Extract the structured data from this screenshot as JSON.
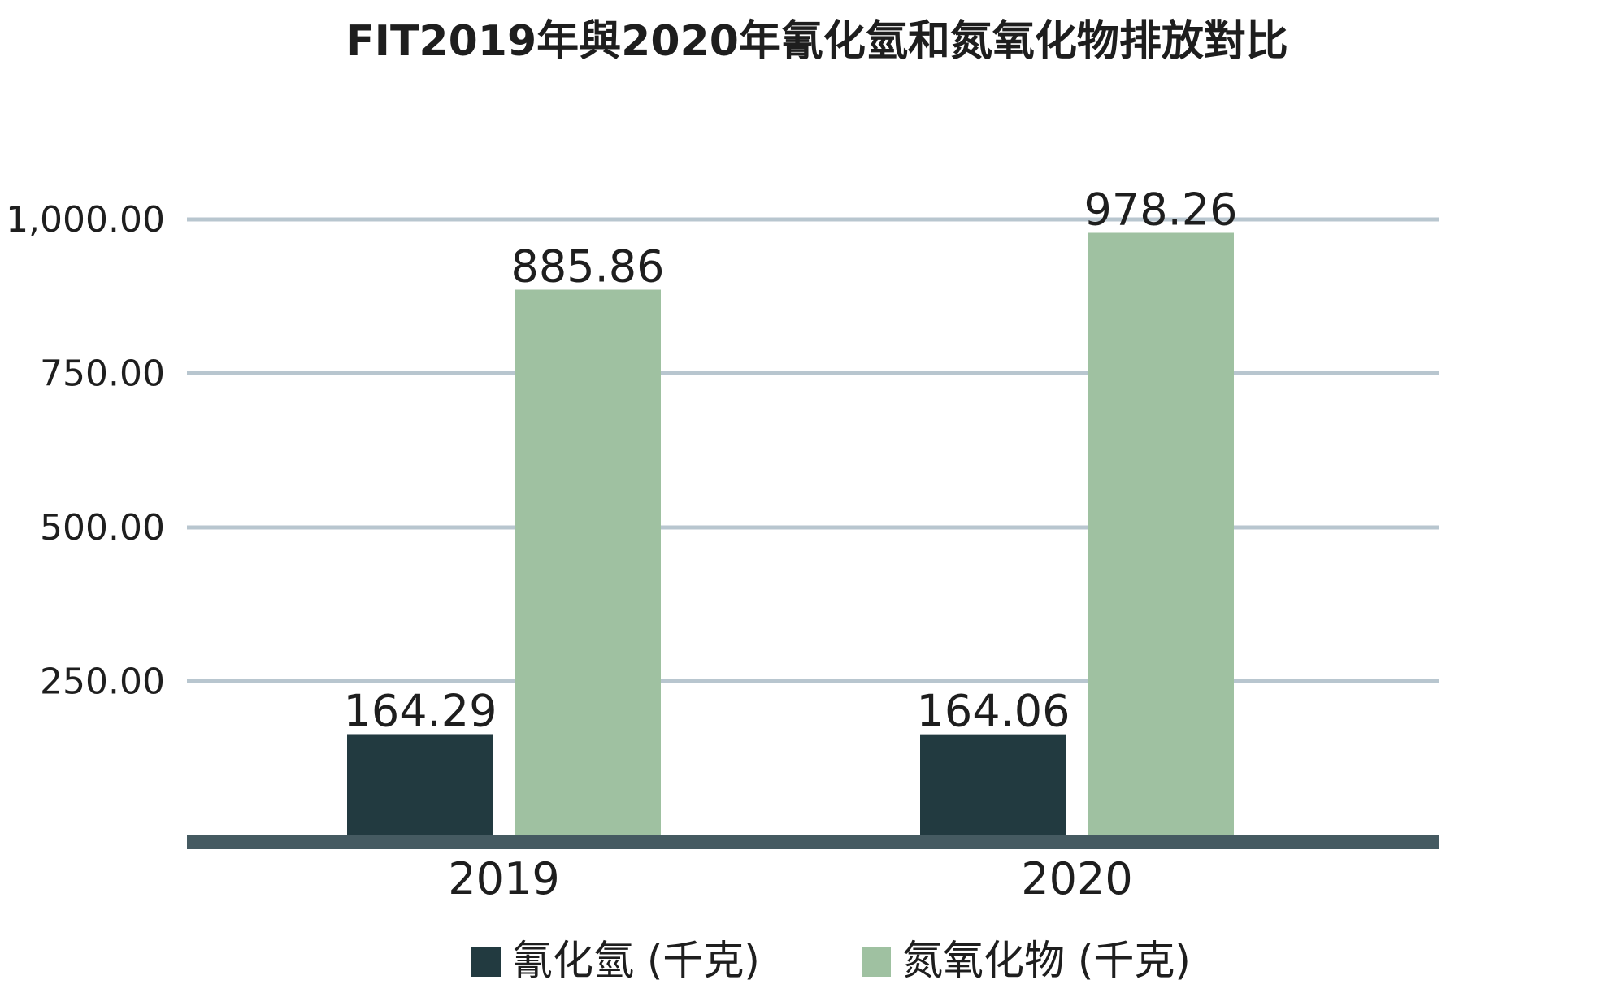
{
  "chart_data": {
    "type": "bar",
    "title": "FIT2019年與2020年氰化氫和氮氧化物排放對比",
    "categories": [
      "2019",
      "2020"
    ],
    "series": [
      {
        "name": "氰化氫 (千克)",
        "values": [
          164.29,
          164.06
        ],
        "color": "#223a40"
      },
      {
        "name": "氮氧化物 (千克)",
        "values": [
          885.86,
          978.26
        ],
        "color": "#9fc1a1"
      }
    ],
    "value_labels": [
      [
        "164.29",
        "164.06"
      ],
      [
        "885.86",
        "978.26"
      ]
    ],
    "ylim": [
      0,
      1000
    ],
    "yticks": [
      250,
      500,
      750,
      1000
    ],
    "ytick_labels": [
      "250.00",
      "500.00",
      "750.00",
      "1,000.00"
    ],
    "grid": true,
    "gridline_color": "#b8c6cf",
    "baseline_color": "#455a61",
    "legend_position": "bottom"
  }
}
